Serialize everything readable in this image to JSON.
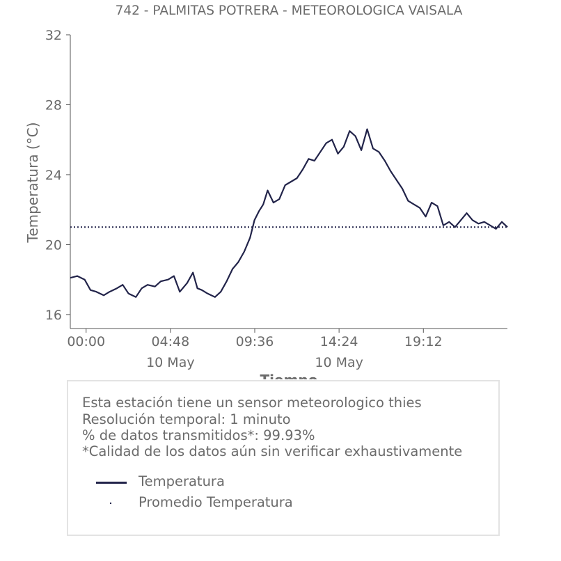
{
  "chart_data": {
    "type": "line",
    "title": "742 - PALMITAS POTRERA - METEOROLOGICA VAISALA",
    "xlabel": "Tiempo",
    "ylabel": "Temperatura (°C)",
    "ylim": [
      15.2,
      32
    ],
    "yticks": [
      16,
      20,
      24,
      28,
      32
    ],
    "xlim": [
      "2023-05-09T23:06",
      "2023-05-10T23:59"
    ],
    "xticks": [
      {
        "time": "2023-05-10T00:00",
        "label": "00:00",
        "sublabel": ""
      },
      {
        "time": "2023-05-10T04:48",
        "label": "04:48",
        "sublabel": "10 May"
      },
      {
        "time": "2023-05-10T09:36",
        "label": "09:36",
        "sublabel": ""
      },
      {
        "time": "2023-05-10T14:24",
        "label": "14:24",
        "sublabel": "10 May"
      },
      {
        "time": "2023-05-10T19:12",
        "label": "19:12",
        "sublabel": ""
      }
    ],
    "grid": false,
    "legend_position": "bottom",
    "series": [
      {
        "name": "Temperatura",
        "color": "#22244a",
        "style": "solid",
        "x": [
          "2023-05-09T23:06",
          "2023-05-09T23:30",
          "2023-05-09T23:55",
          "2023-05-10T00:15",
          "2023-05-10T00:35",
          "2023-05-10T01:00",
          "2023-05-10T01:20",
          "2023-05-10T01:45",
          "2023-05-10T02:05",
          "2023-05-10T02:25",
          "2023-05-10T02:50",
          "2023-05-10T03:10",
          "2023-05-10T03:30",
          "2023-05-10T03:55",
          "2023-05-10T04:15",
          "2023-05-10T04:40",
          "2023-05-10T05:00",
          "2023-05-10T05:20",
          "2023-05-10T05:45",
          "2023-05-10T06:05",
          "2023-05-10T06:20",
          "2023-05-10T06:35",
          "2023-05-10T06:55",
          "2023-05-10T07:20",
          "2023-05-10T07:40",
          "2023-05-10T08:00",
          "2023-05-10T08:20",
          "2023-05-10T08:40",
          "2023-05-10T09:00",
          "2023-05-10T09:20",
          "2023-05-10T09:35",
          "2023-05-10T09:50",
          "2023-05-10T10:05",
          "2023-05-10T10:20",
          "2023-05-10T10:40",
          "2023-05-10T11:00",
          "2023-05-10T11:20",
          "2023-05-10T11:40",
          "2023-05-10T12:00",
          "2023-05-10T12:20",
          "2023-05-10T12:40",
          "2023-05-10T13:00",
          "2023-05-10T13:20",
          "2023-05-10T13:40",
          "2023-05-10T14:00",
          "2023-05-10T14:20",
          "2023-05-10T14:40",
          "2023-05-10T15:00",
          "2023-05-10T15:20",
          "2023-05-10T15:40",
          "2023-05-10T16:00",
          "2023-05-10T16:20",
          "2023-05-10T16:40",
          "2023-05-10T17:00",
          "2023-05-10T17:20",
          "2023-05-10T17:40",
          "2023-05-10T18:00",
          "2023-05-10T18:20",
          "2023-05-10T18:40",
          "2023-05-10T19:00",
          "2023-05-10T19:20",
          "2023-05-10T19:40",
          "2023-05-10T20:00",
          "2023-05-10T20:20",
          "2023-05-10T20:40",
          "2023-05-10T21:00",
          "2023-05-10T21:20",
          "2023-05-10T21:40",
          "2023-05-10T22:00",
          "2023-05-10T22:20",
          "2023-05-10T22:40",
          "2023-05-10T23:00",
          "2023-05-10T23:20",
          "2023-05-10T23:40",
          "2023-05-10T23:59"
        ],
        "y": [
          18.1,
          18.2,
          18.0,
          17.4,
          17.3,
          17.1,
          17.3,
          17.5,
          17.7,
          17.2,
          17.0,
          17.5,
          17.7,
          17.6,
          17.9,
          18.0,
          18.2,
          17.3,
          17.8,
          18.4,
          17.5,
          17.4,
          17.2,
          17.0,
          17.3,
          17.9,
          18.6,
          19.0,
          19.6,
          20.4,
          21.4,
          21.9,
          22.3,
          23.1,
          22.4,
          22.6,
          23.4,
          23.6,
          23.8,
          24.3,
          24.9,
          24.8,
          25.3,
          25.8,
          26.0,
          25.2,
          25.6,
          26.5,
          26.2,
          25.4,
          26.6,
          25.5,
          25.3,
          24.8,
          24.2,
          23.7,
          23.2,
          22.5,
          22.3,
          22.1,
          21.6,
          22.4,
          22.2,
          21.1,
          21.3,
          21.0,
          21.4,
          21.8,
          21.4,
          21.2,
          21.3,
          21.1,
          20.9,
          21.3,
          21.0
        ]
      },
      {
        "name": "Promedio Temperatura",
        "color": "#22244a",
        "style": "dotted",
        "x": [
          "2023-05-09T23:06",
          "2023-05-10T23:59"
        ],
        "y": [
          21.0,
          21.0
        ]
      }
    ]
  },
  "info_box": {
    "lines": [
      "Esta estación tiene un sensor meteorologico thies",
      "Resolución temporal: 1 minuto",
      "% de datos transmitidos*: 99.93%",
      "*Calidad de los datos aún sin verificar exhaustivamente"
    ],
    "legend": [
      {
        "label": "Temperatura",
        "style": "solid"
      },
      {
        "label": "Promedio Temperatura",
        "style": "dotted"
      }
    ]
  },
  "colors": {
    "series": "#22244a",
    "text": "#6b6b6b",
    "axis": "#555555",
    "box_border": "#e3e3e3"
  }
}
